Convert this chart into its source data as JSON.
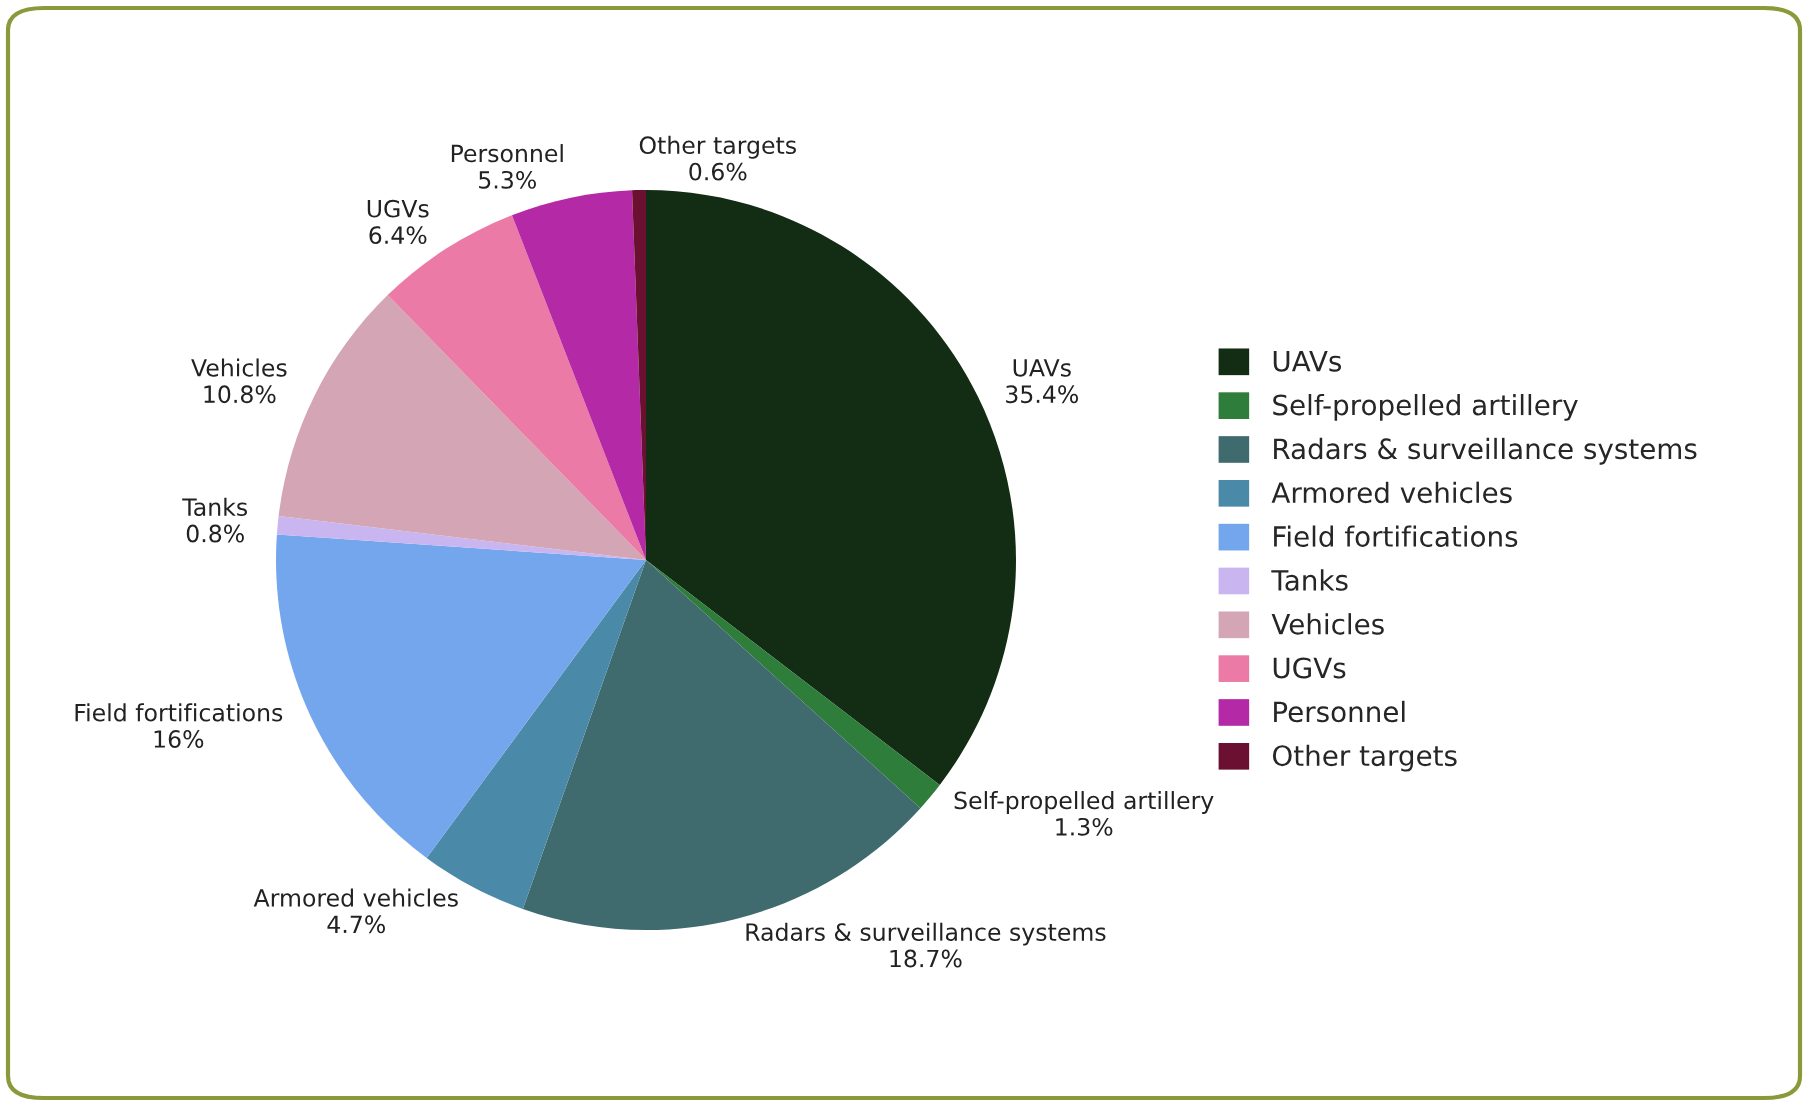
{
  "chart_data": {
    "type": "pie",
    "categories": [
      "UAVs",
      "Self-propelled artillery",
      "Radars & surveillance systems",
      "Armored vehicles",
      "Field fortifications",
      "Tanks",
      "Vehicles",
      "UGVs",
      "Personnel",
      "Other targets"
    ],
    "values": [
      35.4,
      1.3,
      18.7,
      4.7,
      16,
      0.8,
      10.8,
      6.4,
      5.3,
      0.6
    ],
    "value_labels": [
      "35.4%",
      "1.3%",
      "18.7%",
      "4.7%",
      "16%",
      "0.8%",
      "10.8%",
      "6.4%",
      "5.3%",
      "0.6%"
    ],
    "colors": [
      "#132d14",
      "#2e7d3a",
      "#3f6b6e",
      "#4a8aa8",
      "#74a6ee",
      "#c9b5f0",
      "#d4a5b5",
      "#ec7aa6",
      "#b42aa6",
      "#6b1030"
    ],
    "legend": "right"
  }
}
